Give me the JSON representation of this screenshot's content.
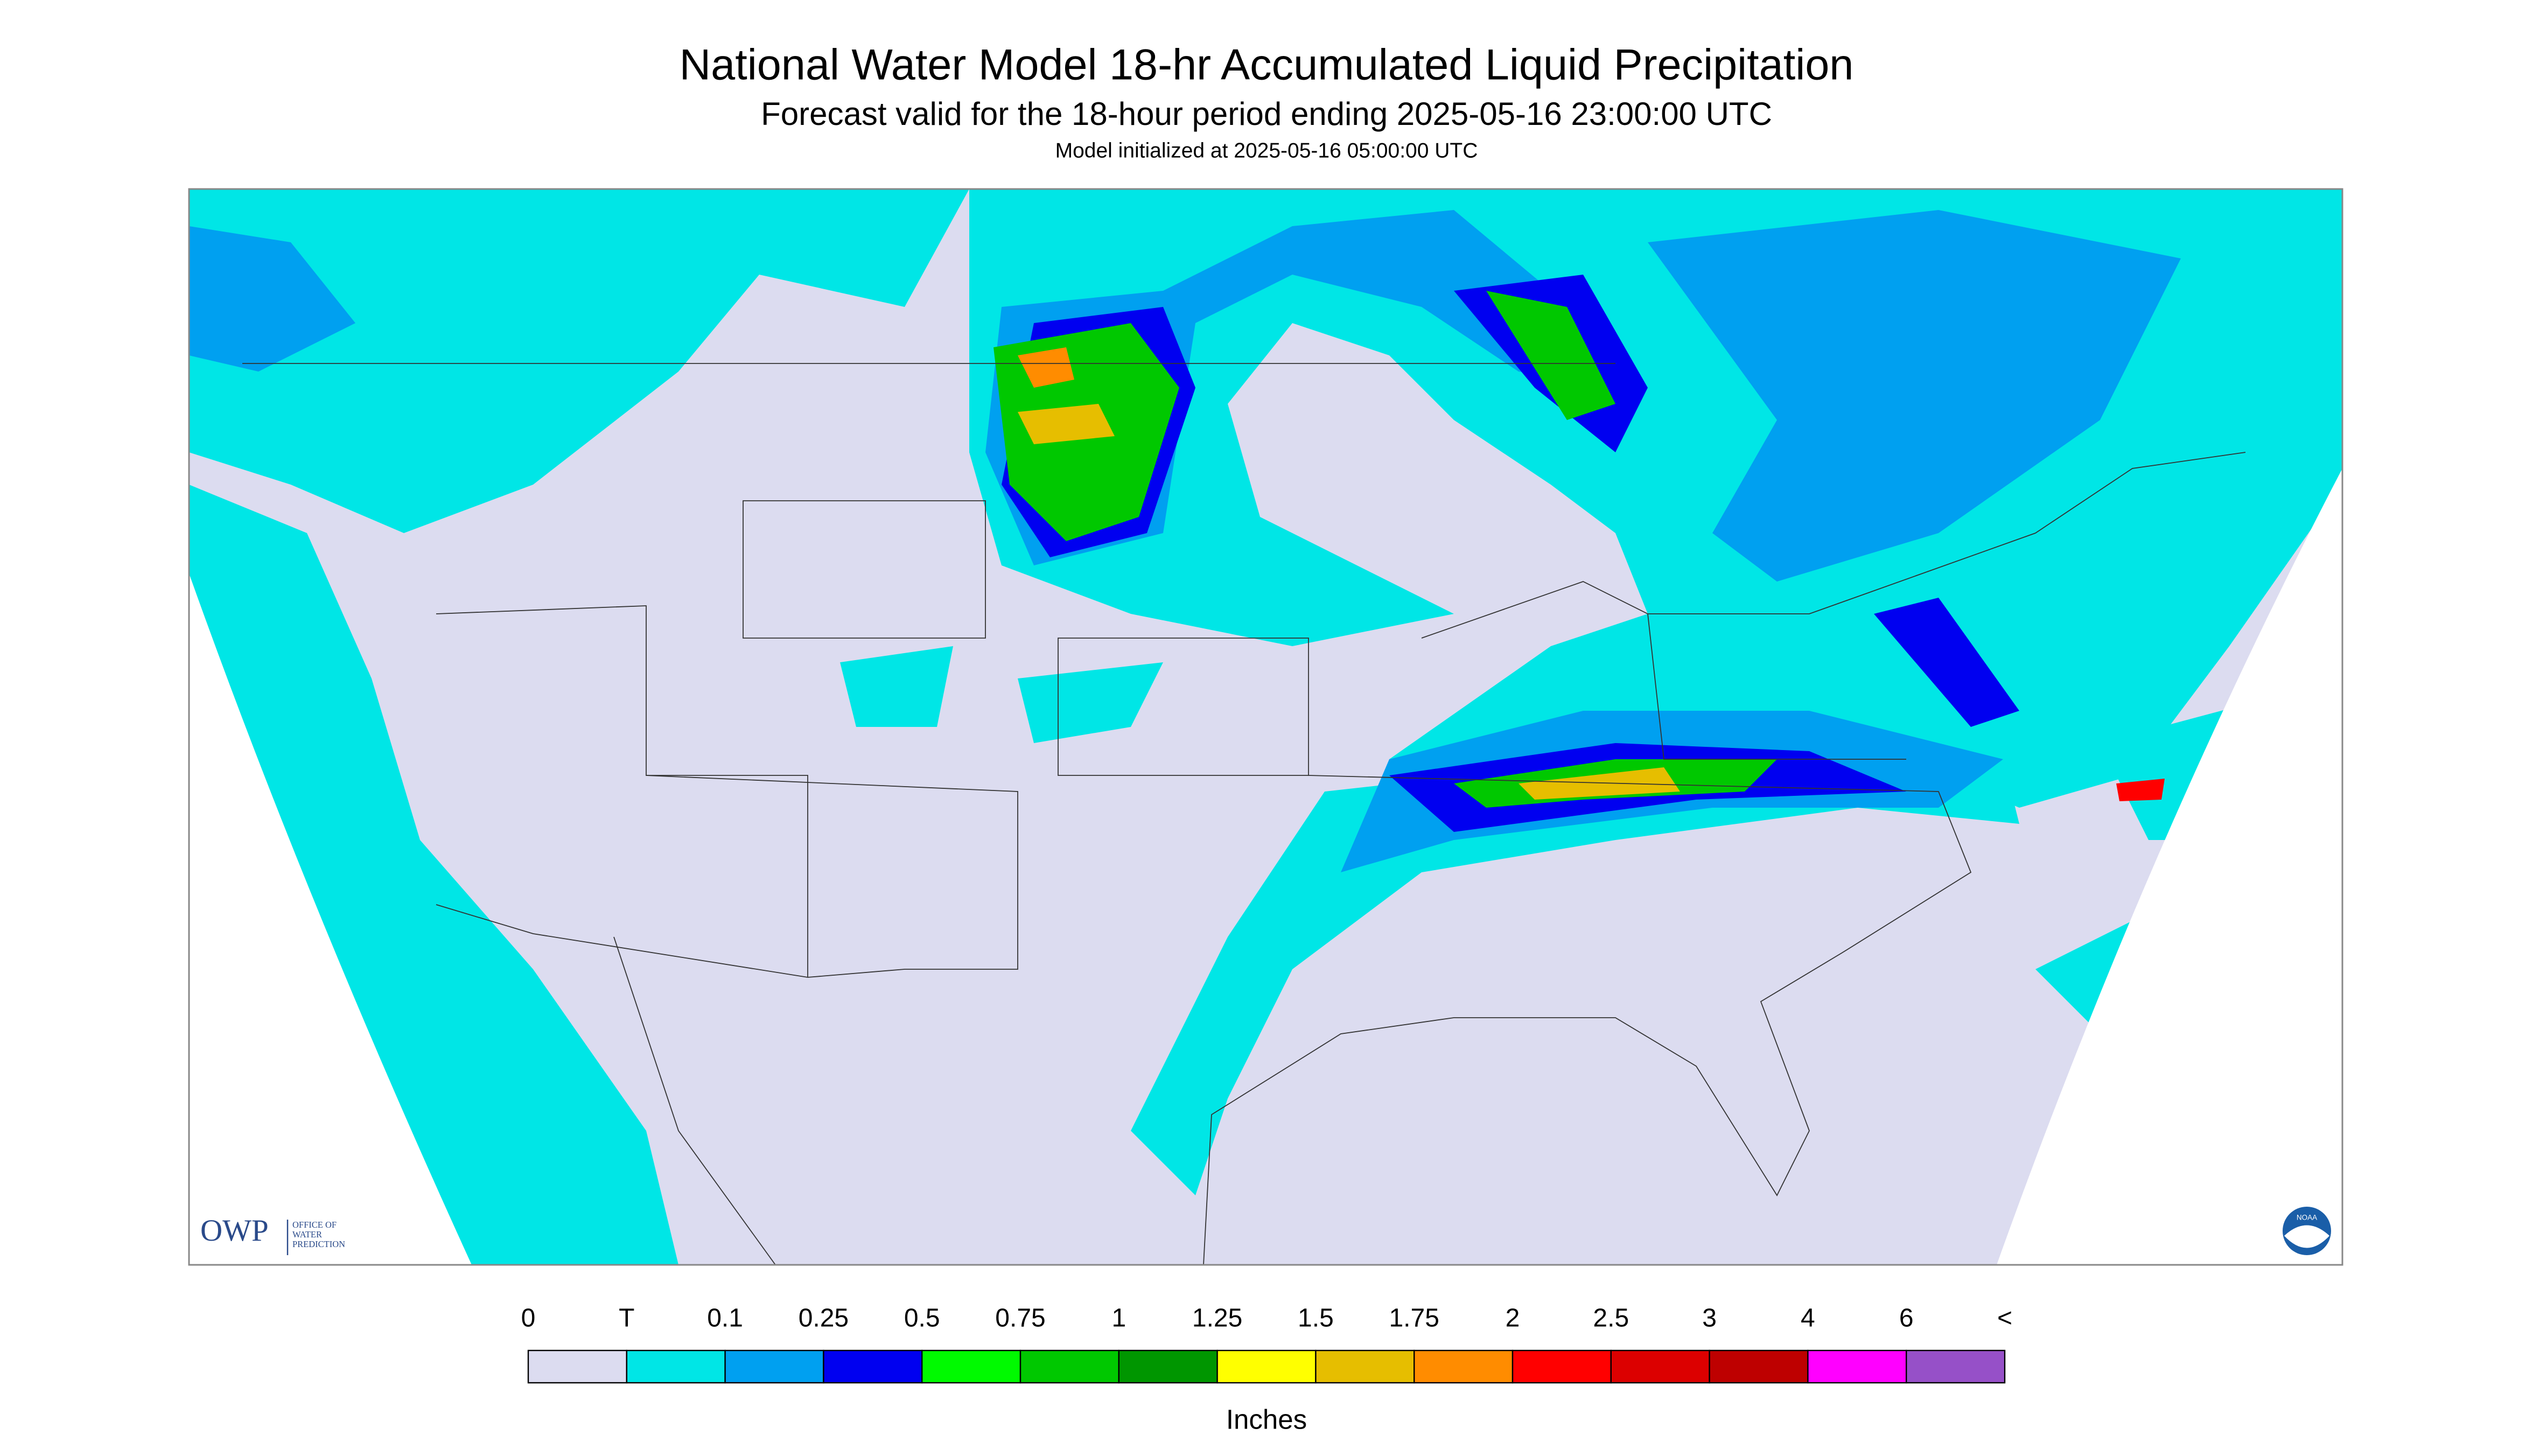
{
  "header": {
    "title": "National Water Model 18-hr Accumulated Liquid Precipitation",
    "subtitle": "Forecast valid for the 18-hour period ending 2025-05-16 23:00:00 UTC",
    "note": "Model initialized at 2025-05-16 05:00:00 UTC"
  },
  "legend": {
    "labels": [
      "0",
      "T",
      "0.1",
      "0.25",
      "0.5",
      "0.75",
      "1",
      "1.25",
      "1.5",
      "1.75",
      "2",
      "2.5",
      "3",
      "4",
      "6",
      "<"
    ],
    "colors": [
      "#dcdcf0",
      "#00e6e6",
      "#00a0f0",
      "#0000f0",
      "#00fa00",
      "#00c800",
      "#009600",
      "#ffff00",
      "#e6be00",
      "#ff8c00",
      "#ff0000",
      "#dc0000",
      "#be0000",
      "#ff00ff",
      "#9650c8"
    ],
    "unit": "Inches"
  },
  "logos": {
    "owp": "OWP",
    "owp_lines": [
      "OFFICE OF",
      "WATER",
      "PREDICTION"
    ],
    "noaa": "NOAA"
  }
}
